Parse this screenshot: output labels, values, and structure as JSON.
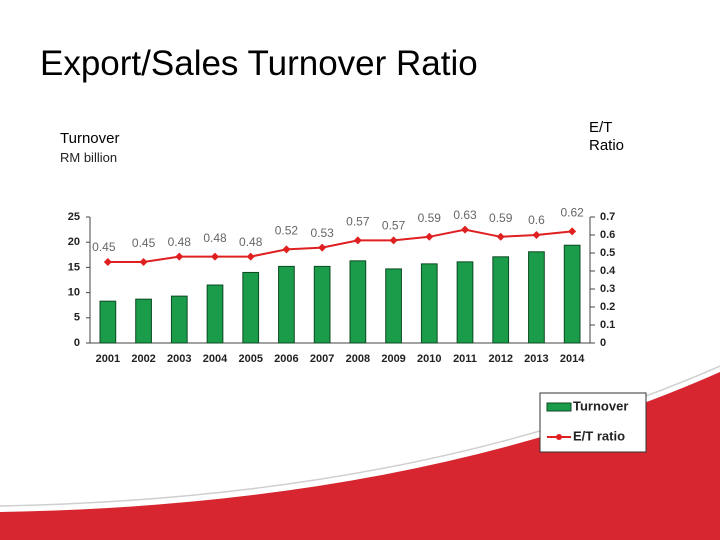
{
  "title": "Export/Sales Turnover Ratio",
  "chart_data": {
    "type": "bar",
    "ylabel": "Turnover",
    "yunit": "RM billion",
    "y2label": "E/T Ratio",
    "categories": [
      "2001",
      "2002",
      "2003",
      "2004",
      "2005",
      "2006",
      "2007",
      "2008",
      "2009",
      "2010",
      "2011",
      "2012",
      "2013",
      "2014"
    ],
    "series": [
      {
        "name": "Turnover",
        "type": "bar",
        "color": "#1a9c4a",
        "values": [
          8.3,
          8.7,
          9.3,
          11.5,
          14,
          15.2,
          15.2,
          16.3,
          14.7,
          15.7,
          16.1,
          17.1,
          18.1,
          19.4
        ]
      },
      {
        "name": "E/T ratio",
        "type": "line",
        "axis": "y2",
        "color": "#e02020",
        "values": [
          0.45,
          0.45,
          0.48,
          0.48,
          0.48,
          0.52,
          0.53,
          0.57,
          0.57,
          0.59,
          0.63,
          0.59,
          0.6,
          0.62
        ]
      }
    ],
    "ylim": [
      0,
      25
    ],
    "yticks": [
      0,
      5,
      10,
      15,
      20,
      25
    ],
    "y2lim": [
      0,
      0.7
    ],
    "y2ticks": [
      0,
      0.1,
      0.2,
      0.3,
      0.4,
      0.5,
      0.6,
      0.7
    ]
  }
}
